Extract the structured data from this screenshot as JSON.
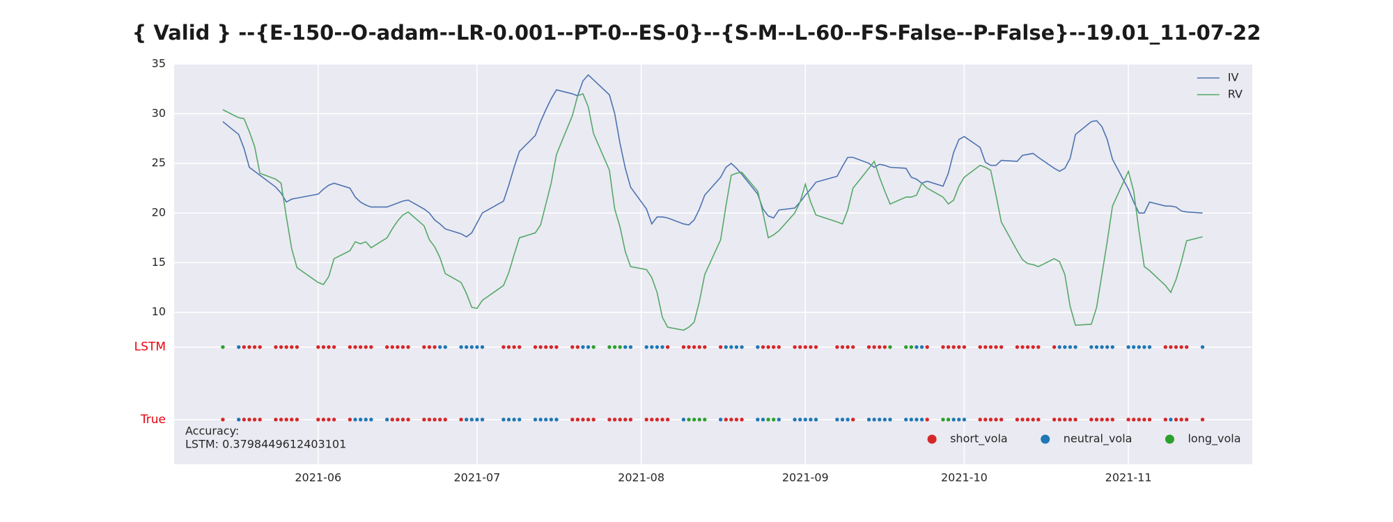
{
  "chart_data": {
    "type": "line",
    "title": "{ Valid } --{E-150--O-adam--LR-0.001--PT-0--ES-0}--{S-M--L-60--FS-False--P-False}--19.01_11-07-22",
    "x": [
      134,
      137,
      138,
      139,
      140,
      141,
      144,
      145,
      146,
      147,
      148,
      152,
      153,
      154,
      155,
      158,
      159,
      160,
      161,
      162,
      165,
      166,
      167,
      168,
      169,
      172,
      173,
      174,
      175,
      176,
      179,
      180,
      181,
      182,
      183,
      187,
      188,
      189,
      190,
      193,
      194,
      195,
      196,
      197,
      200,
      201,
      202,
      203,
      204,
      207,
      208,
      209,
      210,
      211,
      214,
      215,
      216,
      217,
      218,
      221,
      222,
      223,
      224,
      225,
      228,
      229,
      230,
      231,
      232,
      235,
      236,
      237,
      238,
      239,
      242,
      243,
      244,
      245,
      246,
      250,
      251,
      252,
      253,
      256,
      257,
      258,
      259,
      260,
      263,
      264,
      265,
      266,
      267,
      270,
      271,
      272,
      273,
      274,
      277,
      278,
      279,
      280,
      281,
      284,
      285,
      286,
      287,
      288,
      291,
      292,
      293,
      294,
      295,
      298,
      299,
      300,
      301,
      302,
      305,
      306,
      307,
      308,
      309,
      312,
      313,
      314,
      315,
      316,
      319
    ],
    "xlim": [
      124.8,
      328.4
    ],
    "xticks": [
      {
        "value": 152,
        "label": "2021-06"
      },
      {
        "value": 182,
        "label": "2021-07"
      },
      {
        "value": 213,
        "label": "2021-08"
      },
      {
        "value": 244,
        "label": "2021-09"
      },
      {
        "value": 274,
        "label": "2021-10"
      },
      {
        "value": 305,
        "label": "2021-11"
      }
    ],
    "ylim": [
      -5.3,
      35
    ],
    "yticks": [
      10,
      15,
      20,
      25,
      30,
      35
    ],
    "grid": true,
    "legend": "upper right",
    "series": [
      {
        "name": "IV",
        "color": "#4c72b0",
        "values": [
          29.2,
          27.9,
          26.5,
          24.6,
          24.2,
          23.8,
          22.6,
          22.0,
          21.1,
          21.4,
          21.5,
          21.9,
          22.4,
          22.8,
          23.0,
          22.5,
          21.6,
          21.1,
          20.8,
          20.6,
          20.6,
          20.8,
          21.0,
          21.2,
          21.3,
          20.4,
          20.0,
          19.3,
          18.9,
          18.4,
          17.9,
          17.6,
          18.0,
          19.0,
          20.0,
          21.2,
          22.8,
          24.6,
          26.2,
          27.8,
          29.2,
          30.4,
          31.5,
          32.4,
          32.0,
          31.8,
          33.3,
          33.9,
          33.4,
          31.9,
          30.0,
          27.0,
          24.5,
          22.6,
          20.4,
          18.9,
          19.6,
          19.6,
          19.5,
          18.9,
          18.8,
          19.3,
          20.4,
          21.8,
          23.6,
          24.6,
          25.0,
          24.5,
          23.9,
          21.9,
          20.4,
          19.7,
          19.5,
          20.3,
          20.5,
          21.1,
          21.8,
          22.4,
          23.1,
          23.7,
          24.7,
          25.6,
          25.6,
          25.0,
          24.6,
          24.9,
          24.8,
          24.6,
          24.5,
          23.6,
          23.4,
          23.0,
          23.2,
          22.7,
          24.0,
          26.1,
          27.4,
          27.7,
          26.6,
          25.1,
          24.8,
          24.8,
          25.3,
          25.2,
          25.8,
          25.9,
          26.0,
          25.6,
          24.5,
          24.2,
          24.5,
          25.5,
          27.9,
          29.2,
          29.3,
          28.7,
          27.4,
          25.4,
          22.4,
          21.1,
          20.0,
          20.0,
          21.1,
          20.7,
          20.7,
          20.6,
          20.2,
          20.1,
          20.0
        ]
      },
      {
        "name": "RV",
        "color": "#55a868",
        "values": [
          30.4,
          29.6,
          29.5,
          28.2,
          26.7,
          24.0,
          23.4,
          23.0,
          19.6,
          16.4,
          14.5,
          13.0,
          12.8,
          13.6,
          15.4,
          16.2,
          17.1,
          16.9,
          17.1,
          16.5,
          17.5,
          18.4,
          19.2,
          19.8,
          20.1,
          18.7,
          17.3,
          16.6,
          15.5,
          13.9,
          13.0,
          11.9,
          10.5,
          10.4,
          11.2,
          12.7,
          14.0,
          15.8,
          17.5,
          18.0,
          18.8,
          20.9,
          23.0,
          25.9,
          29.8,
          31.8,
          32.0,
          30.7,
          28.0,
          24.3,
          20.4,
          18.6,
          16.1,
          14.6,
          14.3,
          13.5,
          12.0,
          9.5,
          8.5,
          8.2,
          8.5,
          9.0,
          11.1,
          13.8,
          17.3,
          20.7,
          23.8,
          24.0,
          24.1,
          22.2,
          20.0,
          17.5,
          17.8,
          18.2,
          20.0,
          21.1,
          22.9,
          21.1,
          19.8,
          19.1,
          18.9,
          20.3,
          22.5,
          24.5,
          25.2,
          23.6,
          22.2,
          20.9,
          21.6,
          21.6,
          21.8,
          23.0,
          22.5,
          21.6,
          20.9,
          21.3,
          22.7,
          23.6,
          24.8,
          24.6,
          24.3,
          21.8,
          19.1,
          16.2,
          15.3,
          14.9,
          14.8,
          14.6,
          15.4,
          15.1,
          13.8,
          10.6,
          8.7,
          8.8,
          10.5,
          13.8,
          17.1,
          20.7,
          24.2,
          22.2,
          18.2,
          14.6,
          14.2,
          12.7,
          12.0,
          13.3,
          15.1,
          17.2,
          17.6
        ]
      }
    ],
    "classes": [
      {
        "name": "short_vola",
        "color": "#d62728"
      },
      {
        "name": "neutral_vola",
        "color": "#1f77b4"
      },
      {
        "name": "long_vola",
        "color": "#2ca02c"
      }
    ],
    "class_legend": "lower right",
    "rows": [
      {
        "name": "LSTM",
        "y": 6.5,
        "values": [
          "long_vola",
          "neutral_vola",
          "short_vola",
          "short_vola",
          "short_vola",
          "short_vola",
          "short_vola",
          "short_vola",
          "short_vola",
          "short_vola",
          "short_vola",
          "short_vola",
          "short_vola",
          "short_vola",
          "short_vola",
          "short_vola",
          "short_vola",
          "short_vola",
          "short_vola",
          "short_vola",
          "short_vola",
          "short_vola",
          "short_vola",
          "short_vola",
          "short_vola",
          "short_vola",
          "short_vola",
          "short_vola",
          "neutral_vola",
          "neutral_vola",
          "neutral_vola",
          "neutral_vola",
          "neutral_vola",
          "neutral_vola",
          "neutral_vola",
          "short_vola",
          "short_vola",
          "short_vola",
          "short_vola",
          "short_vola",
          "short_vola",
          "short_vola",
          "short_vola",
          "short_vola",
          "short_vola",
          "short_vola",
          "neutral_vola",
          "neutral_vola",
          "long_vola",
          "long_vola",
          "long_vola",
          "long_vola",
          "neutral_vola",
          "neutral_vola",
          "neutral_vola",
          "neutral_vola",
          "neutral_vola",
          "neutral_vola",
          "short_vola",
          "short_vola",
          "short_vola",
          "short_vola",
          "short_vola",
          "short_vola",
          "short_vola",
          "neutral_vola",
          "neutral_vola",
          "neutral_vola",
          "neutral_vola",
          "neutral_vola",
          "short_vola",
          "short_vola",
          "short_vola",
          "short_vola",
          "short_vola",
          "short_vola",
          "short_vola",
          "short_vola",
          "short_vola",
          "short_vola",
          "short_vola",
          "short_vola",
          "short_vola",
          "short_vola",
          "short_vola",
          "short_vola",
          "short_vola",
          "long_vola",
          "long_vola",
          "long_vola",
          "neutral_vola",
          "neutral_vola",
          "short_vola",
          "short_vola",
          "short_vola",
          "short_vola",
          "short_vola",
          "short_vola",
          "short_vola",
          "short_vola",
          "short_vola",
          "short_vola",
          "short_vola",
          "short_vola",
          "short_vola",
          "short_vola",
          "short_vola",
          "short_vola",
          "short_vola",
          "neutral_vola",
          "neutral_vola",
          "neutral_vola",
          "neutral_vola",
          "neutral_vola",
          "neutral_vola",
          "neutral_vola",
          "neutral_vola",
          "neutral_vola",
          "neutral_vola",
          "neutral_vola",
          "neutral_vola",
          "neutral_vola",
          "neutral_vola",
          "short_vola",
          "short_vola",
          "short_vola",
          "short_vola",
          "short_vola",
          "neutral_vola"
        ]
      },
      {
        "name": "True",
        "y": -0.8,
        "values": [
          "short_vola",
          "neutral_vola",
          "short_vola",
          "short_vola",
          "short_vola",
          "short_vola",
          "short_vola",
          "short_vola",
          "short_vola",
          "short_vola",
          "short_vola",
          "short_vola",
          "short_vola",
          "short_vola",
          "short_vola",
          "short_vola",
          "neutral_vola",
          "neutral_vola",
          "neutral_vola",
          "neutral_vola",
          "neutral_vola",
          "short_vola",
          "short_vola",
          "short_vola",
          "short_vola",
          "short_vola",
          "short_vola",
          "short_vola",
          "short_vola",
          "short_vola",
          "short_vola",
          "neutral_vola",
          "neutral_vola",
          "neutral_vola",
          "neutral_vola",
          "neutral_vola",
          "neutral_vola",
          "neutral_vola",
          "neutral_vola",
          "neutral_vola",
          "neutral_vola",
          "neutral_vola",
          "neutral_vola",
          "neutral_vola",
          "short_vola",
          "short_vola",
          "short_vola",
          "short_vola",
          "short_vola",
          "short_vola",
          "short_vola",
          "short_vola",
          "short_vola",
          "short_vola",
          "short_vola",
          "short_vola",
          "short_vola",
          "short_vola",
          "short_vola",
          "neutral_vola",
          "long_vola",
          "long_vola",
          "long_vola",
          "long_vola",
          "neutral_vola",
          "short_vola",
          "short_vola",
          "short_vola",
          "short_vola",
          "neutral_vola",
          "neutral_vola",
          "long_vola",
          "long_vola",
          "neutral_vola",
          "neutral_vola",
          "neutral_vola",
          "neutral_vola",
          "neutral_vola",
          "neutral_vola",
          "neutral_vola",
          "neutral_vola",
          "neutral_vola",
          "short_vola",
          "neutral_vola",
          "neutral_vola",
          "neutral_vola",
          "neutral_vola",
          "neutral_vola",
          "neutral_vola",
          "neutral_vola",
          "neutral_vola",
          "neutral_vola",
          "short_vola",
          "long_vola",
          "long_vola",
          "neutral_vola",
          "neutral_vola",
          "neutral_vola",
          "short_vola",
          "short_vola",
          "short_vola",
          "short_vola",
          "short_vola",
          "short_vola",
          "short_vola",
          "short_vola",
          "short_vola",
          "short_vola",
          "short_vola",
          "short_vola",
          "short_vola",
          "short_vola",
          "short_vola",
          "short_vola",
          "short_vola",
          "short_vola",
          "short_vola",
          "short_vola",
          "short_vola",
          "short_vola",
          "short_vola",
          "short_vola",
          "short_vola",
          "short_vola",
          "neutral_vola",
          "short_vola",
          "short_vola",
          "short_vola",
          "short_vola"
        ]
      }
    ],
    "annotation": [
      "Accuracy:",
      "LSTM: 0.3798449612403101"
    ]
  }
}
